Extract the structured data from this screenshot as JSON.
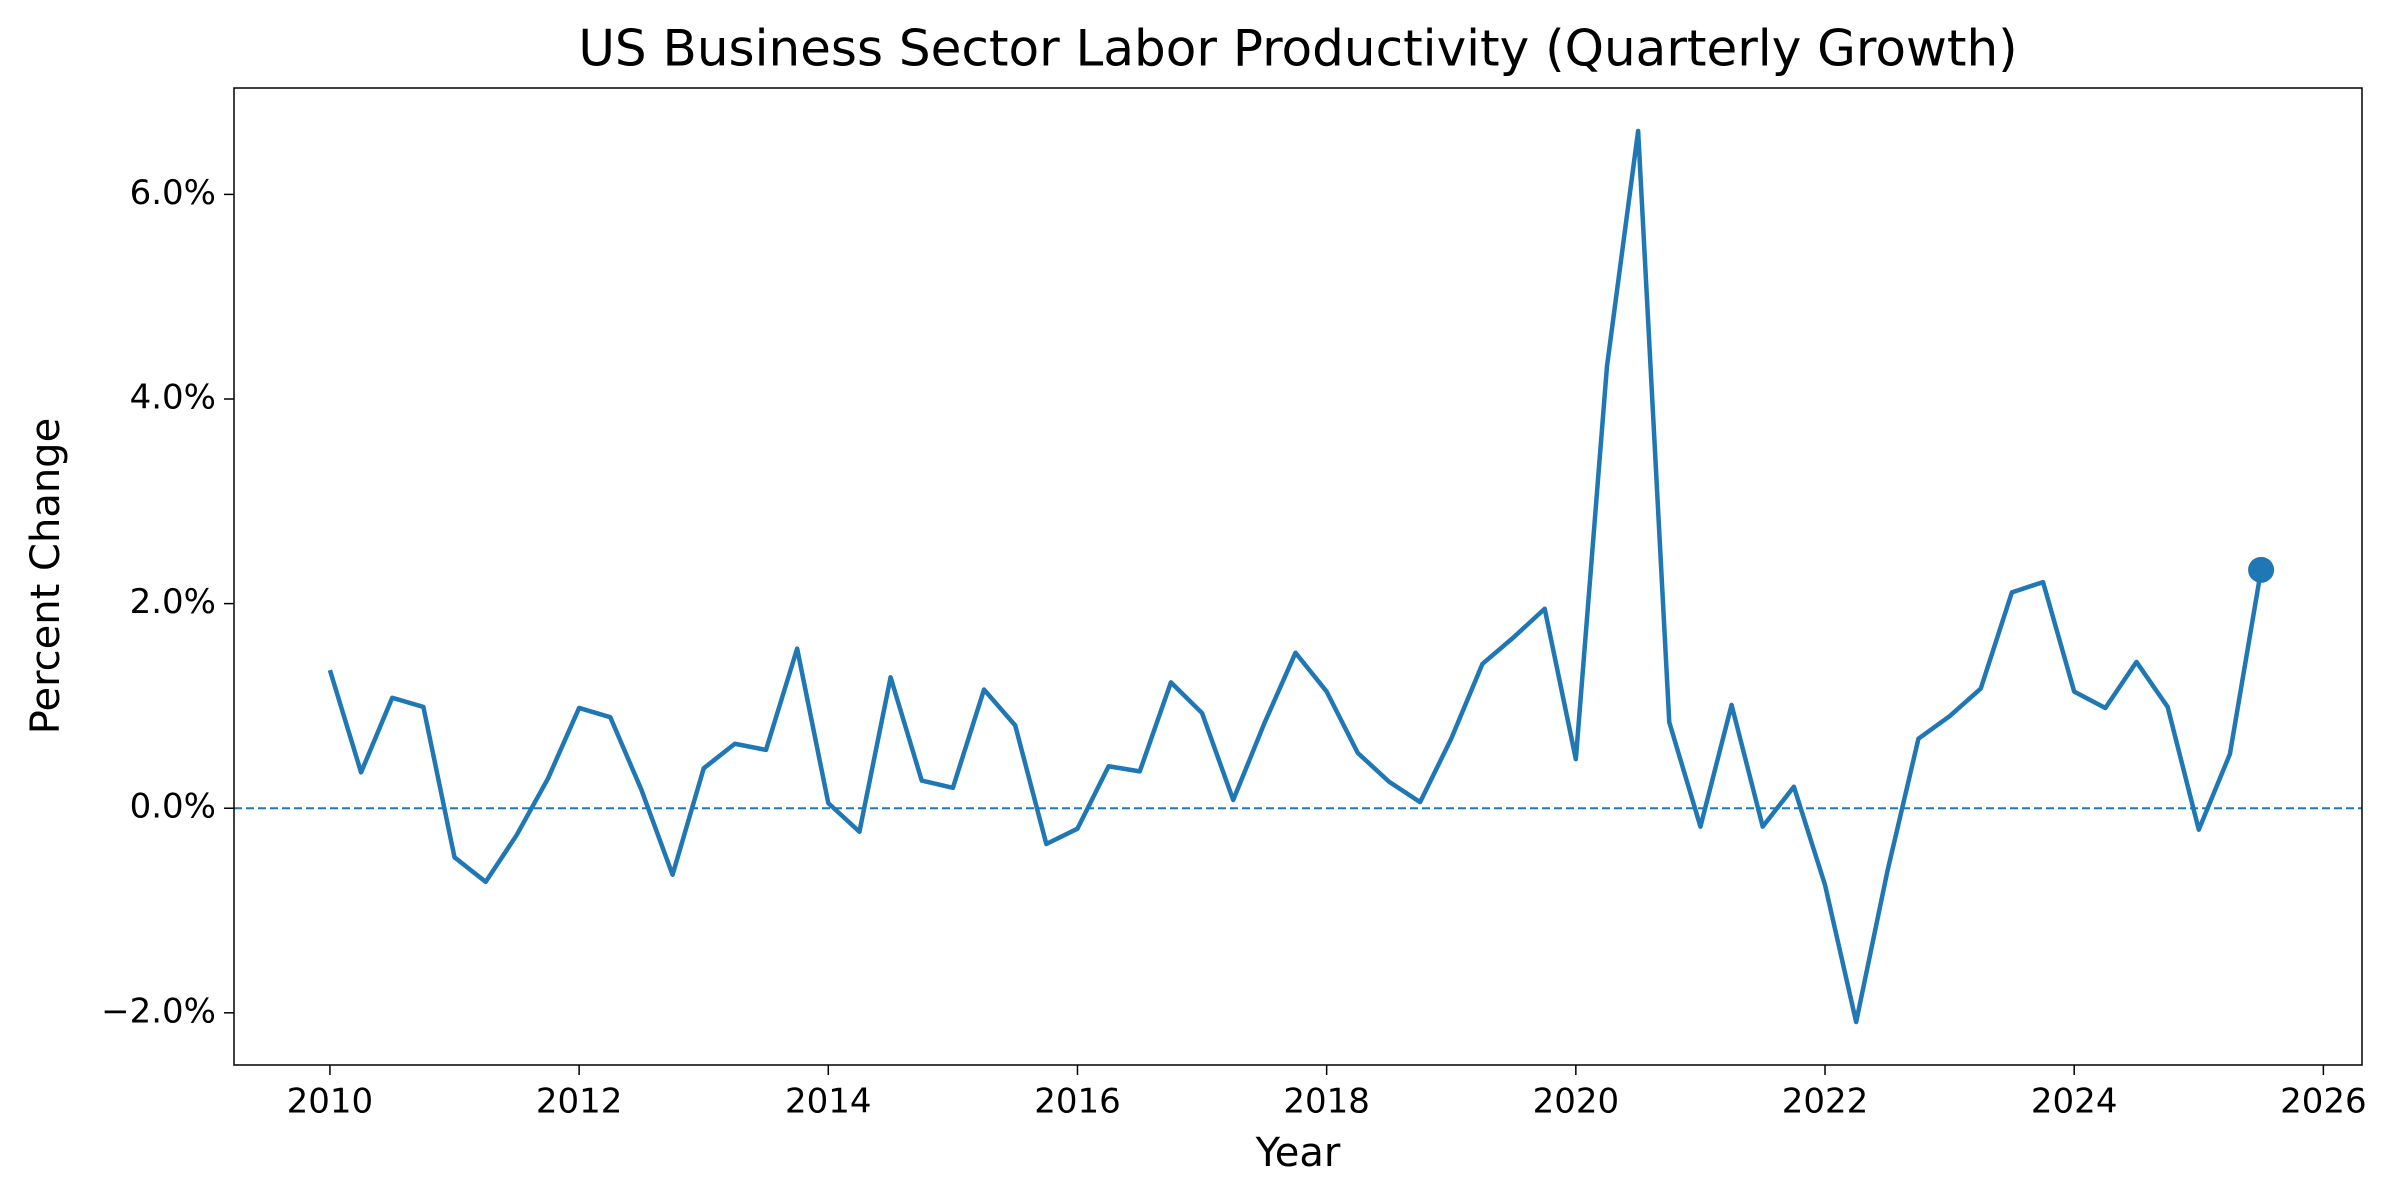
{
  "chart_data": {
    "type": "line",
    "title": "US Business Sector Labor Productivity (Quarterly Growth)",
    "x_label": "Year",
    "y_label": "Percent Change",
    "x": [
      2010,
      2010.25,
      2010.5,
      2010.75,
      2011,
      2011.25,
      2011.5,
      2011.75,
      2012,
      2012.25,
      2012.5,
      2012.75,
      2013,
      2013.25,
      2013.5,
      2013.75,
      2014,
      2014.25,
      2014.5,
      2014.75,
      2015,
      2015.25,
      2015.5,
      2015.75,
      2016,
      2016.25,
      2016.5,
      2016.75,
      2017,
      2017.25,
      2017.5,
      2017.75,
      2018,
      2018.25,
      2018.5,
      2018.75,
      2019,
      2019.25,
      2019.5,
      2019.75,
      2020,
      2020.25,
      2020.5,
      2020.75,
      2021,
      2021.25,
      2021.5,
      2021.75,
      2022,
      2022.25,
      2022.5,
      2022.75,
      2023,
      2023.25,
      2023.5,
      2023.75,
      2024,
      2024.25,
      2024.5,
      2024.75,
      2025,
      2025.25,
      2025.5
    ],
    "values": [
      1.35,
      0.35,
      1.08,
      0.99,
      -0.48,
      -0.72,
      -0.26,
      0.29,
      0.98,
      0.89,
      0.18,
      -0.65,
      0.39,
      0.63,
      0.57,
      1.56,
      0.05,
      -0.23,
      1.28,
      0.27,
      0.2,
      1.16,
      0.81,
      -0.35,
      -0.2,
      0.41,
      0.36,
      1.23,
      0.93,
      0.08,
      0.83,
      1.52,
      1.14,
      0.54,
      0.26,
      0.06,
      0.68,
      1.41,
      1.67,
      1.95,
      0.48,
      4.32,
      6.62,
      0.84,
      -0.18,
      1.01,
      -0.18,
      0.21,
      -0.75,
      -2.09,
      -0.62,
      0.68,
      0.9,
      1.17,
      2.11,
      2.21,
      1.14,
      0.98,
      1.43,
      0.99,
      -0.21,
      0.53,
      2.33
    ],
    "color": "#1f77b4",
    "hline": 0,
    "xlim": [
      2009.23,
      2026.31
    ],
    "ylim": [
      -2.51,
      7.04
    ],
    "xticks": [
      2010,
      2012,
      2014,
      2016,
      2018,
      2020,
      2022,
      2024,
      2026
    ],
    "yticks": [
      {
        "value": -2,
        "label": "−2.0%"
      },
      {
        "value": 0,
        "label": "0.0%"
      },
      {
        "value": 2,
        "label": "2.0%"
      },
      {
        "value": 4,
        "label": "4.0%"
      },
      {
        "value": 6,
        "label": "6.0%"
      }
    ]
  }
}
